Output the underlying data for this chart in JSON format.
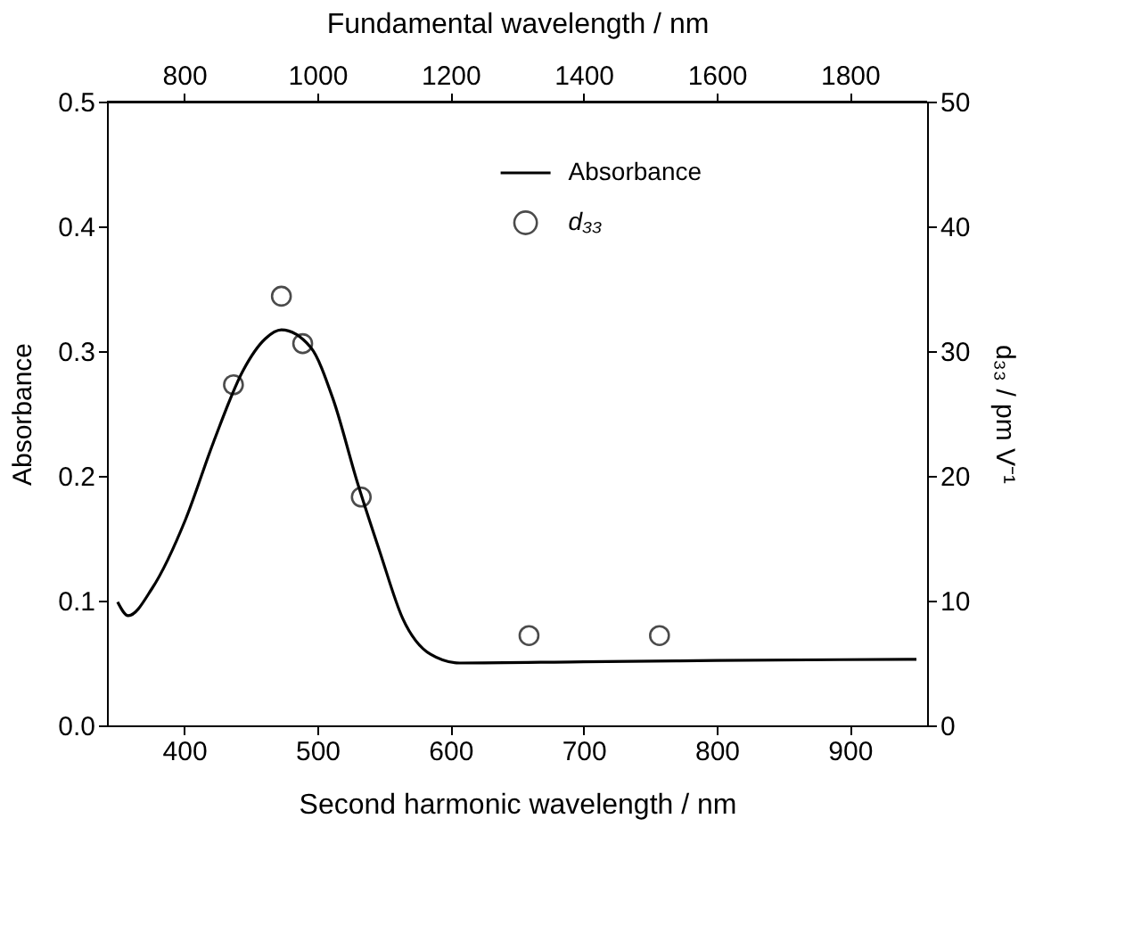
{
  "chart_data": {
    "type": "line",
    "xlabel": "Second harmonic wavelength  /  nm",
    "ylabel": "Absorbance",
    "y2label": "d₃₃  /  pm V⁻¹",
    "x2label": "Fundamental wavelength  /  nm",
    "xlim": [
      342,
      958
    ],
    "xticks": [
      400,
      500,
      600,
      700,
      800,
      900
    ],
    "x2lim": [
      684,
      1916
    ],
    "x2ticks": [
      800,
      1000,
      1200,
      1400,
      1600,
      1800
    ],
    "ylim": [
      0,
      0.5
    ],
    "yticks": [
      {
        "value": 0,
        "label": "0.0"
      },
      0.1,
      0.2,
      0.3,
      0.4,
      0.5
    ],
    "y2lim": [
      0,
      50
    ],
    "y2ticks": [
      0,
      10,
      20,
      30,
      40,
      50
    ],
    "grid": false,
    "legend": "top right",
    "series": [
      {
        "name": "Absorbance",
        "color": "#000000",
        "marker": "none",
        "line_style": "solid",
        "axis": "y",
        "x": [
          350,
          358,
          376,
          401,
          422,
          444,
          461,
          473,
          495,
          512,
          530,
          547,
          564,
          585,
          607,
          700,
          800,
          950
        ],
        "values": [
          0.099,
          0.088,
          0.11,
          0.165,
          0.227,
          0.284,
          0.31,
          0.317,
          0.303,
          0.261,
          0.195,
          0.139,
          0.086,
          0.057,
          0.05,
          0.051,
          0.052,
          0.053
        ]
      },
      {
        "name": "d₃₃",
        "type": "scatter",
        "color": "#000000",
        "marker": "circle",
        "axis": "y2",
        "x": [
          437,
          473,
          489,
          533,
          659,
          757
        ],
        "values": [
          27.3,
          34.4,
          30.6,
          18.3,
          7.2,
          7.2
        ]
      }
    ]
  }
}
